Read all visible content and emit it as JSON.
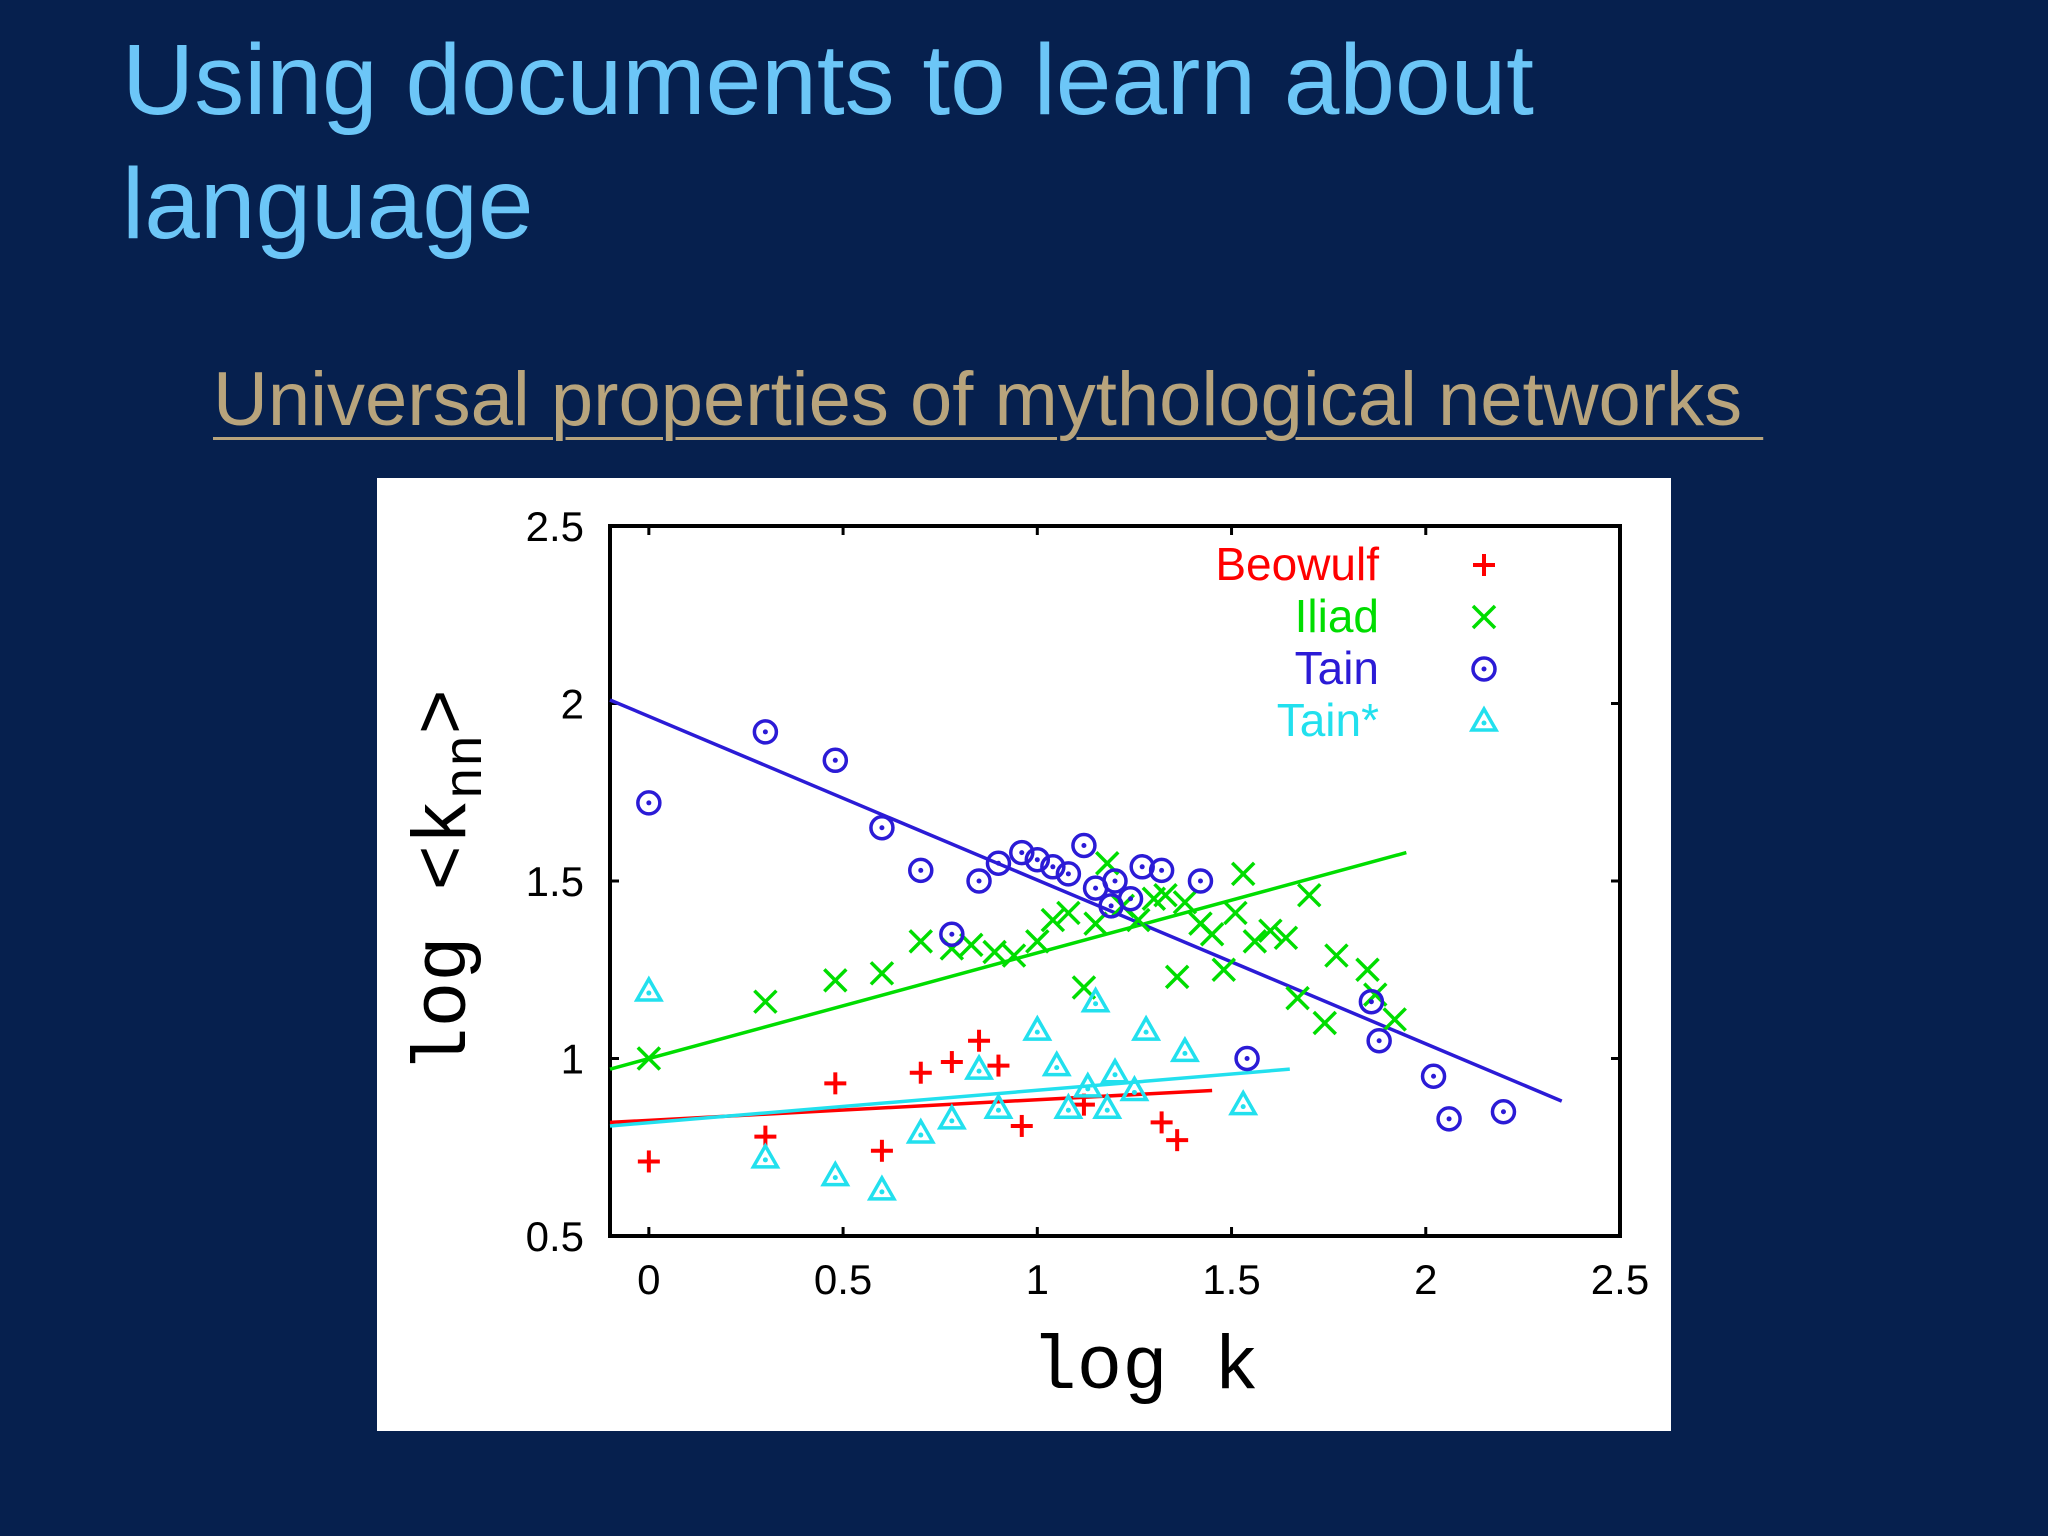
{
  "slide": {
    "title": "Using documents to learn about language",
    "subtitle_link": "Universal properties of mythological networks "
  },
  "chart_data": {
    "type": "scatter",
    "xlabel": "log k",
    "ylabel": "log <k",
    "ylabel_subscript": "nn",
    "ylabel_close": ">",
    "xlim": [
      -0.1,
      2.5
    ],
    "ylim": [
      0.5,
      2.5
    ],
    "xticks": [
      "0",
      "0.5",
      "1",
      "1.5",
      "2",
      "2.5"
    ],
    "xtick_values": [
      0,
      0.5,
      1,
      1.5,
      2,
      2.5
    ],
    "yticks": [
      "0.5",
      "1",
      "1.5",
      "2",
      "2.5"
    ],
    "ytick_values": [
      0.5,
      1,
      1.5,
      2,
      2.5
    ],
    "legend_position": "top-right",
    "series": [
      {
        "name": "Beowulf",
        "color": "#ff0000",
        "marker": "plus",
        "points": [
          [
            0,
            0.71
          ],
          [
            0.3,
            0.78
          ],
          [
            0.48,
            0.93
          ],
          [
            0.6,
            0.74
          ],
          [
            0.7,
            0.96
          ],
          [
            0.78,
            0.99
          ],
          [
            0.85,
            1.05
          ],
          [
            0.9,
            0.98
          ],
          [
            0.96,
            0.81
          ],
          [
            1.12,
            0.87
          ],
          [
            1.32,
            0.82
          ],
          [
            1.36,
            0.77
          ]
        ],
        "fit": [
          [
            -0.1,
            0.82
          ],
          [
            1.45,
            0.91
          ]
        ]
      },
      {
        "name": "Iliad",
        "color": "#00dd00",
        "marker": "x",
        "points": [
          [
            0,
            1.0
          ],
          [
            0.3,
            1.16
          ],
          [
            0.48,
            1.22
          ],
          [
            0.6,
            1.24
          ],
          [
            0.7,
            1.33
          ],
          [
            0.78,
            1.31
          ],
          [
            0.83,
            1.32
          ],
          [
            0.89,
            1.3
          ],
          [
            0.94,
            1.29
          ],
          [
            1.0,
            1.33
          ],
          [
            1.04,
            1.39
          ],
          [
            1.08,
            1.41
          ],
          [
            1.12,
            1.2
          ],
          [
            1.15,
            1.38
          ],
          [
            1.18,
            1.55
          ],
          [
            1.22,
            1.43
          ],
          [
            1.26,
            1.39
          ],
          [
            1.3,
            1.45
          ],
          [
            1.33,
            1.46
          ],
          [
            1.36,
            1.23
          ],
          [
            1.38,
            1.44
          ],
          [
            1.42,
            1.38
          ],
          [
            1.45,
            1.35
          ],
          [
            1.48,
            1.25
          ],
          [
            1.51,
            1.41
          ],
          [
            1.53,
            1.52
          ],
          [
            1.56,
            1.33
          ],
          [
            1.6,
            1.36
          ],
          [
            1.64,
            1.34
          ],
          [
            1.67,
            1.17
          ],
          [
            1.7,
            1.46
          ],
          [
            1.74,
            1.1
          ],
          [
            1.77,
            1.29
          ],
          [
            1.85,
            1.25
          ],
          [
            1.87,
            1.18
          ],
          [
            1.92,
            1.11
          ]
        ],
        "fit": [
          [
            -0.1,
            0.97
          ],
          [
            1.95,
            1.58
          ]
        ]
      },
      {
        "name": "Tain",
        "color": "#2b1bd6",
        "marker": "circle",
        "points": [
          [
            0,
            1.72
          ],
          [
            0.3,
            1.92
          ],
          [
            0.48,
            1.84
          ],
          [
            0.6,
            1.65
          ],
          [
            0.7,
            1.53
          ],
          [
            0.78,
            1.35
          ],
          [
            0.85,
            1.5
          ],
          [
            0.9,
            1.55
          ],
          [
            0.96,
            1.58
          ],
          [
            1.0,
            1.56
          ],
          [
            1.04,
            1.54
          ],
          [
            1.08,
            1.52
          ],
          [
            1.12,
            1.6
          ],
          [
            1.15,
            1.48
          ],
          [
            1.19,
            1.43
          ],
          [
            1.2,
            1.5
          ],
          [
            1.24,
            1.45
          ],
          [
            1.27,
            1.54
          ],
          [
            1.32,
            1.53
          ],
          [
            1.42,
            1.5
          ],
          [
            1.54,
            1.0
          ],
          [
            1.86,
            1.16
          ],
          [
            1.88,
            1.05
          ],
          [
            2.02,
            0.95
          ],
          [
            2.06,
            0.83
          ],
          [
            2.2,
            0.85
          ]
        ],
        "fit": [
          [
            -0.1,
            2.01
          ],
          [
            2.35,
            0.88
          ]
        ]
      },
      {
        "name": "Tain*",
        "color": "#22e0ee",
        "marker": "triangle",
        "points": [
          [
            0,
            1.19
          ],
          [
            0.3,
            0.72
          ],
          [
            0.48,
            0.67
          ],
          [
            0.6,
            0.63
          ],
          [
            0.7,
            0.79
          ],
          [
            0.78,
            0.83
          ],
          [
            0.85,
            0.97
          ],
          [
            0.9,
            0.86
          ],
          [
            1.0,
            1.08
          ],
          [
            1.05,
            0.98
          ],
          [
            1.08,
            0.86
          ],
          [
            1.13,
            0.92
          ],
          [
            1.15,
            1.16
          ],
          [
            1.18,
            0.86
          ],
          [
            1.2,
            0.96
          ],
          [
            1.25,
            0.91
          ],
          [
            1.28,
            1.08
          ],
          [
            1.38,
            1.02
          ],
          [
            1.53,
            0.87
          ]
        ],
        "fit": [
          [
            -0.1,
            0.81
          ],
          [
            1.65,
            0.97
          ]
        ]
      }
    ]
  }
}
